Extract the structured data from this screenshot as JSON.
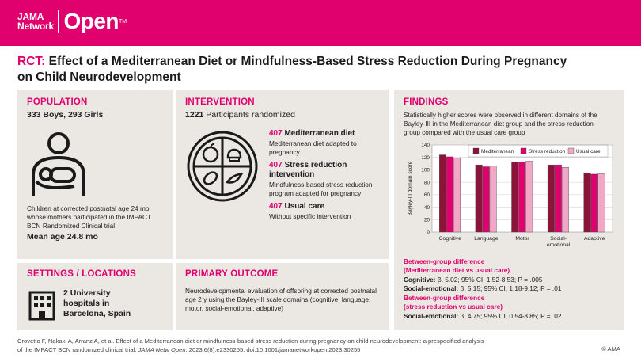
{
  "header": {
    "logo_line1": "JAMA",
    "logo_line2": "Network",
    "logo_big": "Open",
    "logo_tm": "TM"
  },
  "title": {
    "prefix": "RCT:",
    "line1": "Effect of a Mediterranean Diet or Mindfulness-Based Stress Reduction During Pregnancy",
    "line2": "on Child Neurodevelopment"
  },
  "population": {
    "heading": "POPULATION",
    "counts": "333 Boys, 293 Girls",
    "description": [
      "Children at corrected postnatal age 24 mo",
      "whose mothers participated in the IMPACT",
      "BCN Randomized Clinical trial"
    ],
    "mean_age": "Mean age 24.8 mo",
    "icon": "mother-baby-icon"
  },
  "intervention": {
    "heading": "INTERVENTION",
    "randomized_count": "1221",
    "randomized_label": " Participants randomized",
    "groups": [
      {
        "count": "407",
        "name": "Mediterranean diet",
        "desc": [
          "Mediterranean diet adapted to",
          "pregnancy"
        ]
      },
      {
        "count": "407",
        "name": "Stress reduction",
        "name2": "intervention",
        "desc": [
          "Mindfulness-based stress reduction",
          "program adapted for pregnancy"
        ]
      },
      {
        "count": "407",
        "name": "Usual care",
        "desc": [
          "Without specific intervention"
        ]
      }
    ],
    "icon": "plate-food-icon"
  },
  "settings": {
    "heading": "SETTINGS / LOCATIONS",
    "text": [
      "2 University",
      "hospitals in",
      "Barcelona, Spain"
    ],
    "icon": "hospital-building-icon"
  },
  "outcome": {
    "heading": "PRIMARY OUTCOME",
    "text": [
      "Neurodevelopmental evaluation of offspring at corrected postnatal",
      "age 2 y using the Bayley-III scale domains (cognitive, language,",
      "motor, social-emotional, adaptive)"
    ]
  },
  "findings": {
    "heading": "FINDINGS",
    "text": [
      "Statistically higher scores were observed in different domains of the",
      "Bayley-III in the Mediterranean diet group and the stress reduction",
      "group compared with the usual care group"
    ],
    "diff1_heading": [
      "Between-group difference",
      "(Mediterranean diet vs usual care)"
    ],
    "diff1_cog_label": "Cognitive:",
    "diff1_cog_value": " β, 5.02; 95% CI, 1.52-8.53; P = .005",
    "diff1_soc_label": "Social-emotional:",
    "diff1_soc_value": " β, 5.15; 95% CI, 1.18-9.12; P = .01",
    "diff2_heading": [
      "Between-group difference",
      "(stress reduction vs usual care)"
    ],
    "diff2_soc_label": "Social-emotional:",
    "diff2_soc_value": " β, 4.75; 95% CI, 0.54-8.85; P = .02"
  },
  "chart_data": {
    "type": "bar",
    "categories": [
      "Cognitive",
      "Language",
      "Motor",
      "Social-\nemotional",
      "Adaptive"
    ],
    "series": [
      {
        "name": "Mediterranean",
        "values": [
          124,
          108,
          113,
          108,
          95
        ],
        "color": "#8a1538"
      },
      {
        "name": "Stress reduction",
        "values": [
          121,
          105,
          113,
          108,
          93
        ],
        "color": "#e0006e"
      },
      {
        "name": "Usual care",
        "values": [
          119,
          106,
          114,
          104,
          94
        ],
        "color": "#f3a7c6"
      }
    ],
    "ylabel": "Bayley-III domain score",
    "ylim": [
      0,
      140
    ],
    "yticks": [
      0,
      20,
      40,
      60,
      80,
      100,
      120,
      140
    ],
    "legend": "top",
    "grid": true
  },
  "footer": {
    "citation1": "Crovetto F, Nakaki A, Arranz A, et al. Effect of a Mediterranean diet or mindfulness-based stress reduction during pregnancy on child neurodevelopment: a prespecified analysis",
    "citation2a": "of the IMPACT BCN randomized clinical trial. ",
    "citation2b": "JAMA Netw Open.",
    "citation2c": " 2023;6(8):e2330255. doi:10.1001/jamanetworkopen.2023.30255",
    "copyright": "© AMA"
  }
}
